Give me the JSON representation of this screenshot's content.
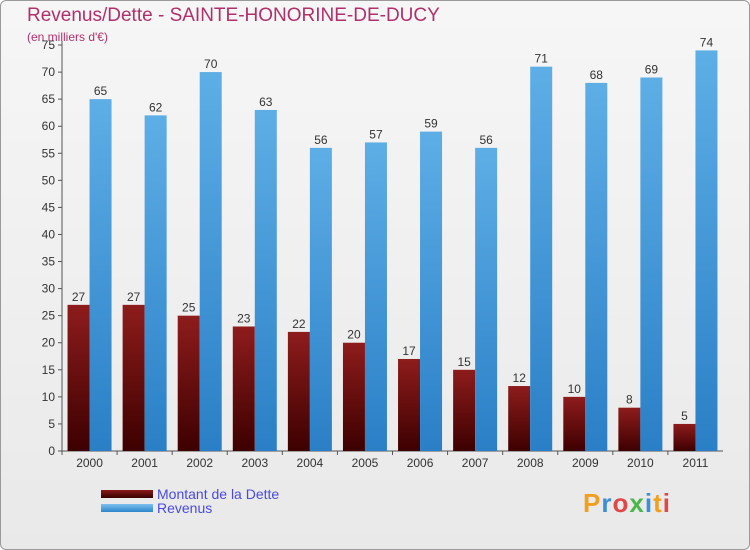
{
  "chart_data": {
    "type": "bar",
    "title": "Revenus/Dette - SAINTE-HONORINE-DE-DUCY",
    "subtitle": "(en milliers d'€)",
    "categories": [
      "2000",
      "2001",
      "2002",
      "2003",
      "2004",
      "2005",
      "2006",
      "2007",
      "2008",
      "2009",
      "2010",
      "2011"
    ],
    "series": [
      {
        "name": "Montant de la Dette",
        "color": "#6b0b0b",
        "values": [
          27,
          27,
          25,
          23,
          22,
          20,
          17,
          15,
          12,
          10,
          8,
          5
        ]
      },
      {
        "name": "Revenus",
        "color": "#3b93d8",
        "values": [
          65,
          62,
          70,
          63,
          56,
          57,
          59,
          56,
          71,
          68,
          69,
          74
        ]
      }
    ],
    "ylim": [
      0,
      75
    ],
    "yticks": [
      0,
      5,
      10,
      15,
      20,
      25,
      30,
      35,
      40,
      45,
      50,
      55,
      60,
      65,
      70,
      75
    ],
    "grid": false,
    "legend_position": "bottom-left"
  },
  "logo": {
    "text": "Proxiti",
    "letter_colors": [
      "#f0a020",
      "#3a8fd8",
      "#e04848",
      "#4ab848",
      "#3a8fd8",
      "#f0a020",
      "#e04848"
    ]
  }
}
